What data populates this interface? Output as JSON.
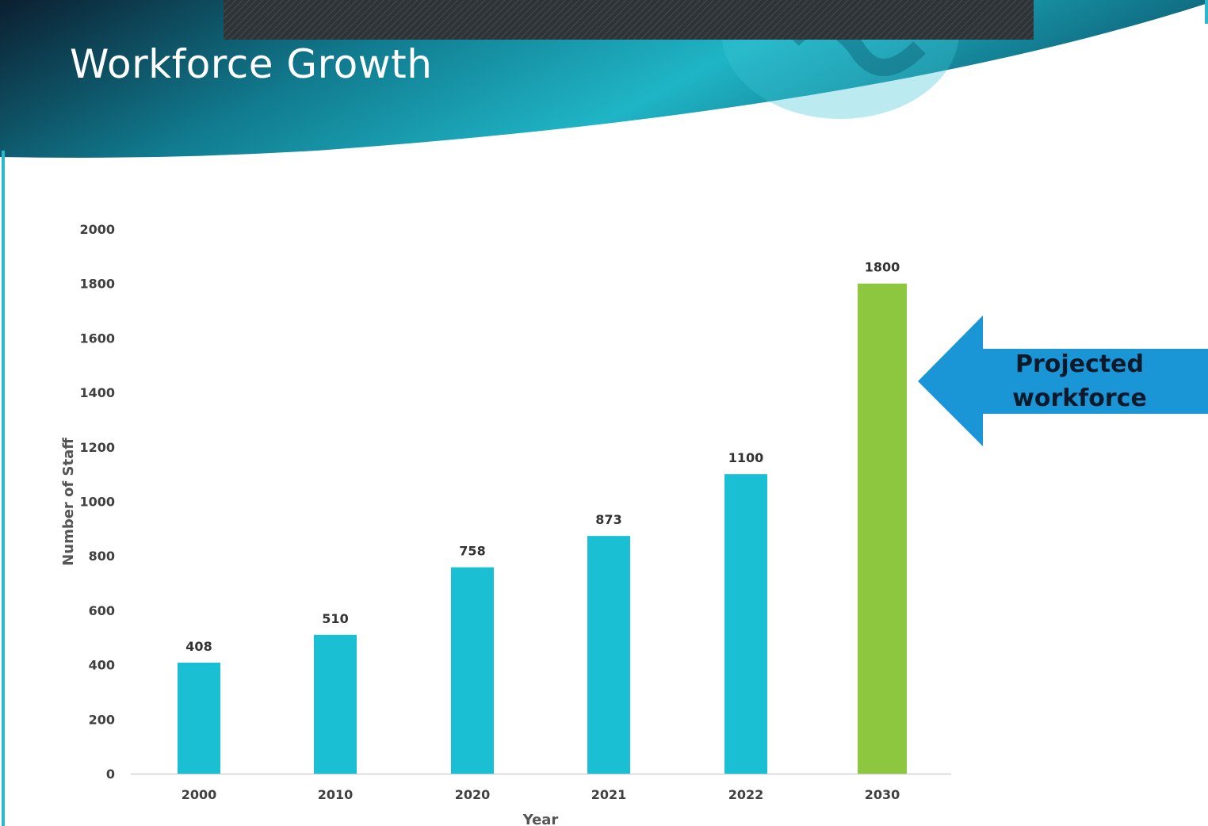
{
  "slide": {
    "title": "Workforce Growth",
    "colors": {
      "header_dark": "#0c2537",
      "header_teal": "#1db3c7",
      "bar": "#1bbfd3",
      "bar_highlight": "#8dc63f",
      "callout": "#1a96d6",
      "text": "#333333"
    }
  },
  "callout": {
    "line1": "Projected",
    "line2": "workforce",
    "icon": "left-arrow-icon",
    "points_to": "2030"
  },
  "chart_data": {
    "type": "bar",
    "title": "",
    "xlabel": "Year",
    "ylabel": "Number of Staff",
    "categories": [
      "2000",
      "2010",
      "2020",
      "2021",
      "2022",
      "2030"
    ],
    "values": [
      408,
      510,
      758,
      873,
      1100,
      1800
    ],
    "highlight": [
      "2030"
    ],
    "ylim": [
      0,
      2000
    ],
    "yticks": [
      0,
      200,
      400,
      600,
      800,
      1000,
      1200,
      1400,
      1600,
      1800,
      2000
    ],
    "grid": false,
    "legend": "none",
    "data_labels": true
  }
}
